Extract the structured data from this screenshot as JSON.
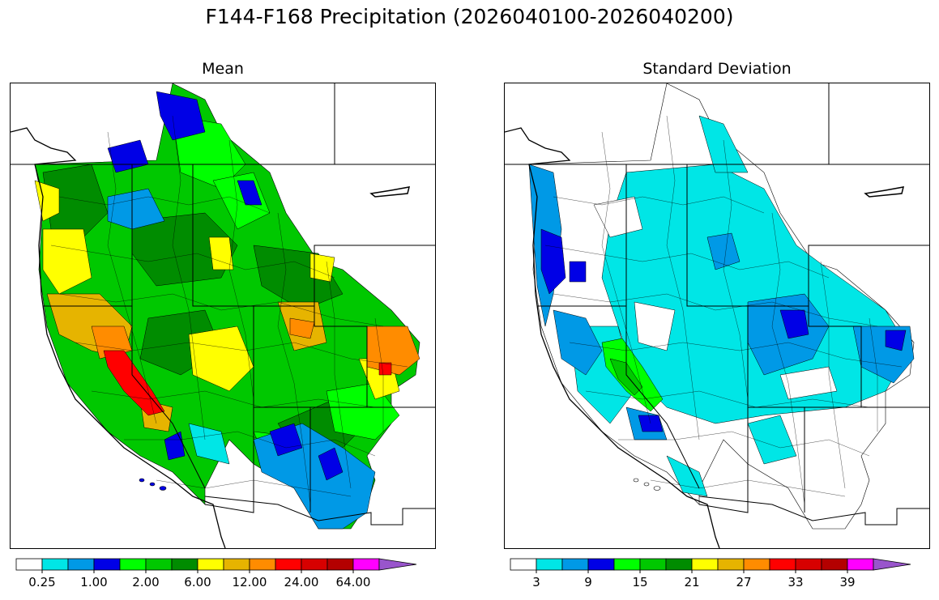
{
  "figure": {
    "title": "F144-F168 Precipitation (2026040100-2026040200)"
  },
  "panels": [
    {
      "title": "Mean",
      "colorbar": {
        "colors": [
          "#ffffff",
          "#00e6e6",
          "#0099e6",
          "#0000e6",
          "#00ff00",
          "#00c800",
          "#008c00",
          "#ffff00",
          "#e6b400",
          "#ff8c00",
          "#ff0000",
          "#d70000",
          "#b40000",
          "#ff00ff",
          "#9955cc"
        ],
        "extend": "max",
        "tick_labels": [
          "0.25",
          "1.00",
          "2.00",
          "6.00",
          "12.00",
          "24.00",
          "64.00"
        ]
      }
    },
    {
      "title": "Standard Deviation",
      "colorbar": {
        "colors": [
          "#ffffff",
          "#00e6e6",
          "#0099e6",
          "#0000e6",
          "#00ff00",
          "#00c800",
          "#008c00",
          "#ffff00",
          "#e6b400",
          "#ff8c00",
          "#ff0000",
          "#d70000",
          "#b40000",
          "#ff00ff",
          "#9955cc"
        ],
        "extend": "max",
        "tick_labels": [
          "3",
          "9",
          "15",
          "21",
          "27",
          "33",
          "39"
        ]
      }
    }
  ]
}
